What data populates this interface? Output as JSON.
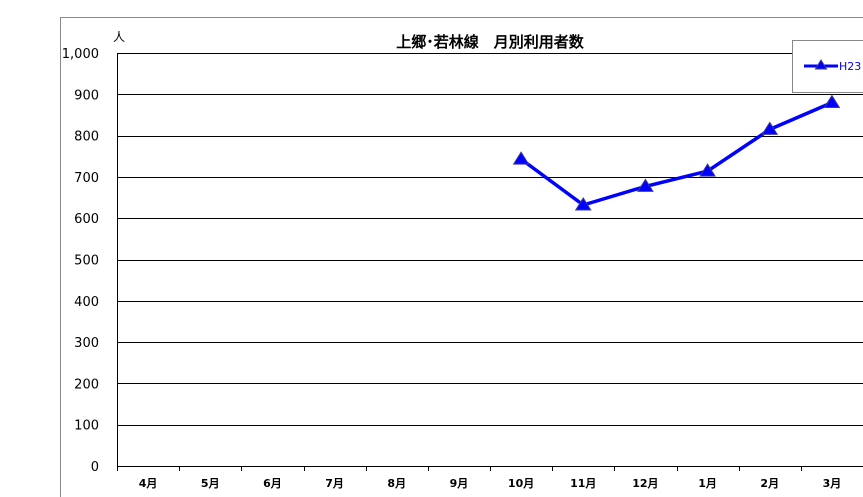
{
  "chart_data": {
    "type": "line",
    "title": "上郷･若林線　月別利用者数",
    "ylabel": "人",
    "xlabel": "",
    "categories": [
      "4月",
      "5月",
      "6月",
      "7月",
      "8月",
      "9月",
      "10月",
      "11月",
      "12月",
      "1月",
      "2月",
      "3月"
    ],
    "ylim": [
      0,
      1000
    ],
    "yticks": [
      0,
      100,
      200,
      300,
      400,
      500,
      600,
      700,
      800,
      900,
      1000
    ],
    "ytick_labels": [
      "0",
      "100",
      "200",
      "300",
      "400",
      "500",
      "600",
      "700",
      "800",
      "900",
      "1,000"
    ],
    "grid": true,
    "legend_position": "top-right",
    "series": [
      {
        "name": "H23",
        "color": "#0000ff",
        "marker": "triangle",
        "values": [
          null,
          null,
          null,
          null,
          null,
          null,
          743,
          632,
          677,
          714,
          815,
          880
        ]
      }
    ]
  }
}
